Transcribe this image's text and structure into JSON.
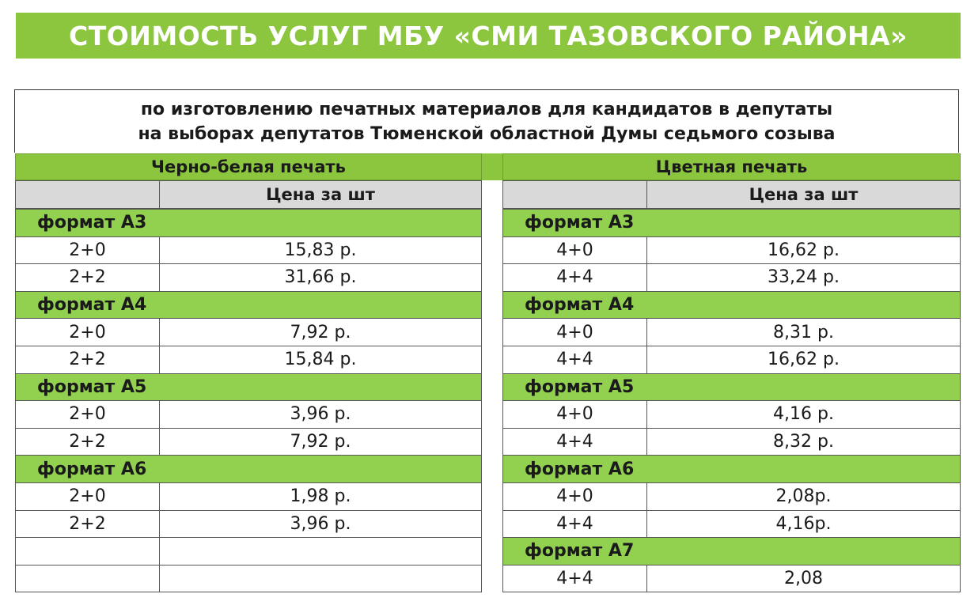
{
  "banner": "СТОИМОСТЬ УСЛУГ МБУ «СМИ ТАЗОВСКОГО РАЙОНА»",
  "subtitle": {
    "line1": "по изготовлению печатных материалов для кандидатов в депутаты",
    "line2": "на выборах депутатов Тюменской областной Думы седьмого созыва"
  },
  "bw": {
    "title": "Черно-белая печать",
    "price_header": "Цена за шт",
    "rows": [
      {
        "fmt": "формат А3"
      },
      {
        "k": "2+0",
        "v": "15,83 р."
      },
      {
        "k": "2+2",
        "v": "31,66 р."
      },
      {
        "fmt": "формат А4"
      },
      {
        "k": "2+0",
        "v": "7,92 р."
      },
      {
        "k": "2+2",
        "v": "15,84 р."
      },
      {
        "fmt": "формат А5"
      },
      {
        "k": "2+0",
        "v": "3,96 р."
      },
      {
        "k": "2+2",
        "v": "7,92 р."
      },
      {
        "fmt": "формат А6"
      },
      {
        "k": "2+0",
        "v": "1,98 р."
      },
      {
        "k": "2+2",
        "v": "3,96 р."
      },
      {
        "k": "",
        "v": ""
      },
      {
        "k": "",
        "v": ""
      }
    ]
  },
  "color": {
    "title": "Цветная печать",
    "price_header": "Цена за шт",
    "rows": [
      {
        "fmt": "формат А3"
      },
      {
        "k": "4+0",
        "v": "16,62 р."
      },
      {
        "k": "4+4",
        "v": "33,24 р."
      },
      {
        "fmt": "формат А4"
      },
      {
        "k": "4+0",
        "v": "8,31 р."
      },
      {
        "k": "4+4",
        "v": "16,62 р."
      },
      {
        "fmt": "формат А5"
      },
      {
        "k": "4+0",
        "v": "4,16 р."
      },
      {
        "k": "4+4",
        "v": "8,32 р."
      },
      {
        "fmt": "формат А6"
      },
      {
        "k": "4+0",
        "v": "2,08р."
      },
      {
        "k": "4+4",
        "v": "4,16р."
      },
      {
        "fmt": "формат А7"
      },
      {
        "k": "4+4",
        "v": "2,08"
      }
    ]
  },
  "colors": {
    "banner": "#8cc63f",
    "format_row": "#92d050",
    "column_header": "#d9d9d9"
  }
}
